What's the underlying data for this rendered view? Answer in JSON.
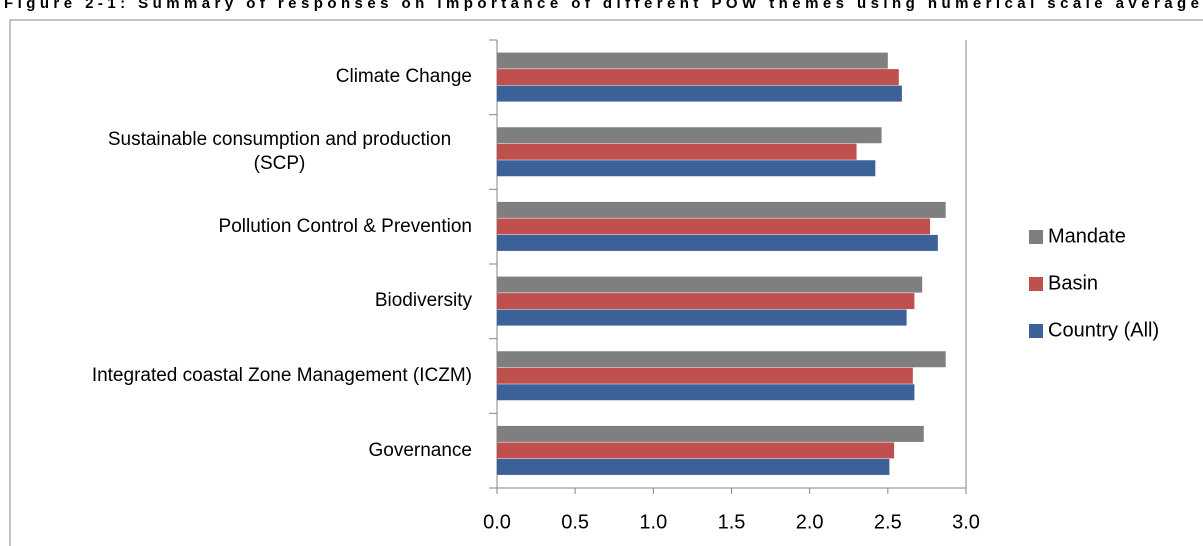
{
  "chart_data": {
    "type": "barh",
    "title": "Figure 2-1: Summary of responses on importance of different POW themes using numerical scale average",
    "categories": [
      "Climate Change",
      "Sustainable consumption and production (SCP)",
      "Pollution Control & Prevention",
      "Biodiversity",
      "Integrated coastal Zone Management (ICZM)",
      "Governance"
    ],
    "series": [
      {
        "name": "Mandate",
        "color": "#7f7f7f",
        "values": [
          2.5,
          2.46,
          2.87,
          2.72,
          2.87,
          2.73
        ]
      },
      {
        "name": "Basin",
        "color": "#c0504d",
        "values": [
          2.57,
          2.3,
          2.77,
          2.67,
          2.66,
          2.54
        ]
      },
      {
        "name": "Country  (All)",
        "color": "#3c6199",
        "values": [
          2.59,
          2.42,
          2.82,
          2.62,
          2.67,
          2.51
        ]
      }
    ],
    "xlim": [
      0,
      3
    ],
    "xticks": [
      {
        "value": 0,
        "label": "0.0"
      },
      {
        "value": 0.5,
        "label": "0.5"
      },
      {
        "value": 1,
        "label": "1.0"
      },
      {
        "value": 1.5,
        "label": "1.5"
      },
      {
        "value": 2,
        "label": "2.0"
      },
      {
        "value": 2.5,
        "label": "2.5"
      },
      {
        "value": 3,
        "label": "3.0"
      }
    ],
    "grid": false,
    "legend": "right"
  }
}
